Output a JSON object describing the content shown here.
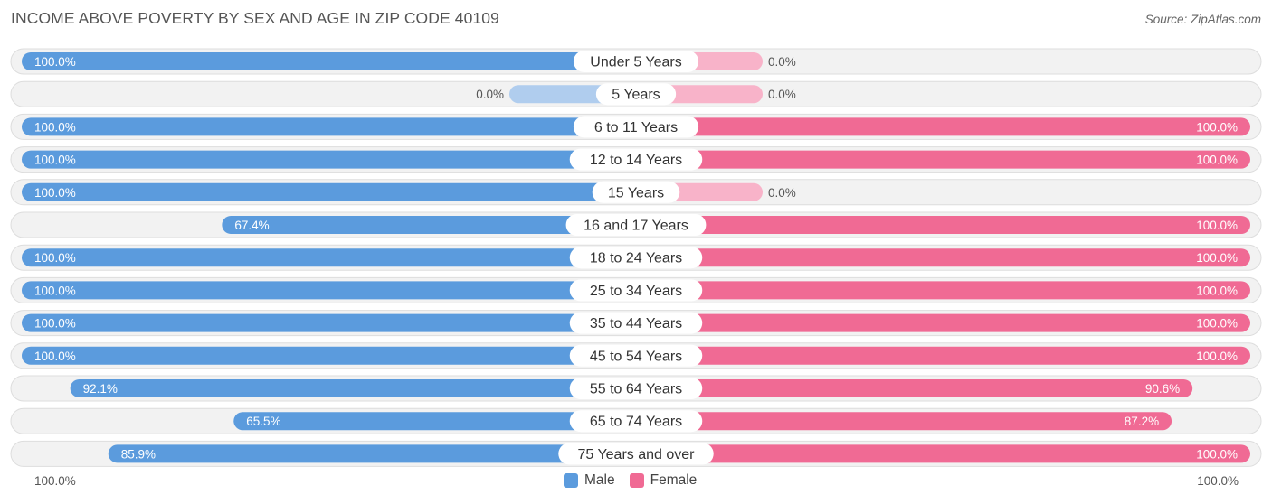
{
  "header": {
    "title": "INCOME ABOVE POVERTY BY SEX AND AGE IN ZIP CODE 40109",
    "source": "Source: ZipAtlas.com"
  },
  "axis": {
    "left_label": "100.0%",
    "right_label": "100.0%"
  },
  "legend": {
    "male_label": "Male",
    "female_label": "Female",
    "male_color": "#5b9bdd",
    "female_color": "#f06a94"
  },
  "chart_data": {
    "type": "bar",
    "orientation": "diverging-horizontal",
    "title": "INCOME ABOVE POVERTY BY SEX AND AGE IN ZIP CODE 40109",
    "xlim": [
      0,
      100
    ],
    "categories": [
      "Under 5 Years",
      "5 Years",
      "6 to 11 Years",
      "12 to 14 Years",
      "15 Years",
      "16 and 17 Years",
      "18 to 24 Years",
      "25 to 34 Years",
      "35 to 44 Years",
      "45 to 54 Years",
      "55 to 64 Years",
      "65 to 74 Years",
      "75 Years and over"
    ],
    "series": [
      {
        "name": "Male",
        "values": [
          100.0,
          0.0,
          100.0,
          100.0,
          100.0,
          67.4,
          100.0,
          100.0,
          100.0,
          100.0,
          92.1,
          65.5,
          85.9
        ],
        "labels": [
          "100.0%",
          "0.0%",
          "100.0%",
          "100.0%",
          "100.0%",
          "67.4%",
          "100.0%",
          "100.0%",
          "100.0%",
          "100.0%",
          "92.1%",
          "65.5%",
          "85.9%"
        ]
      },
      {
        "name": "Female",
        "values": [
          0.0,
          0.0,
          100.0,
          100.0,
          0.0,
          100.0,
          100.0,
          100.0,
          100.0,
          100.0,
          90.6,
          87.2,
          100.0
        ],
        "labels": [
          "0.0%",
          "0.0%",
          "100.0%",
          "100.0%",
          "0.0%",
          "100.0%",
          "100.0%",
          "100.0%",
          "100.0%",
          "100.0%",
          "90.6%",
          "87.2%",
          "100.0%"
        ]
      }
    ]
  }
}
